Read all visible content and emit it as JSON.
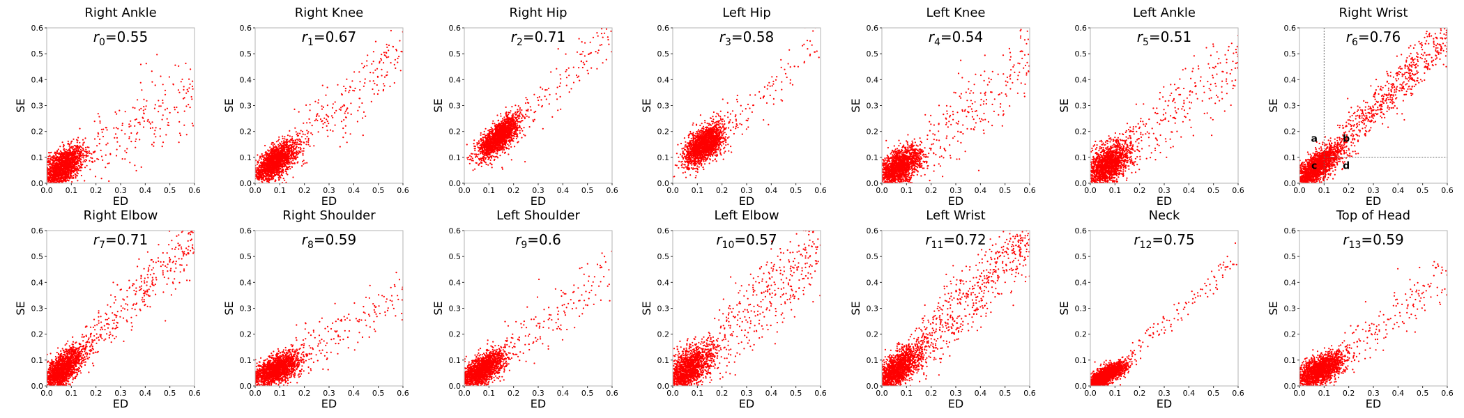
{
  "chart_data": [
    {
      "type": "scatter",
      "title": "Right Ankle",
      "r_sym": "r",
      "r_sub": "0",
      "r_val": "=0.55",
      "xlabel": "ED",
      "ylabel": "SE",
      "xlim": [
        0,
        0.6
      ],
      "ylim": [
        0,
        0.6
      ],
      "xticks": [
        "0.0",
        "0.1",
        "0.2",
        "0.3",
        "0.4",
        "0.5",
        "0.6"
      ],
      "yticks": [
        "0.0",
        "0.1",
        "0.2",
        "0.3",
        "0.4",
        "0.5",
        "0.6"
      ],
      "cluster": {
        "cx": 0.06,
        "cy": 0.06,
        "sx": 0.045,
        "sy": 0.04,
        "rho": 0.55
      },
      "spread": {
        "slope": 0.6,
        "noise": 0.08,
        "count": 200
      }
    },
    {
      "type": "scatter",
      "title": "Right Knee",
      "r_sym": "r",
      "r_sub": "1",
      "r_val": "=0.67",
      "xlabel": "ED",
      "ylabel": "SE",
      "xlim": [
        0,
        0.6
      ],
      "ylim": [
        0,
        0.6
      ],
      "xticks": [
        "0.0",
        "0.1",
        "0.2",
        "0.3",
        "0.4",
        "0.5",
        "0.6"
      ],
      "yticks": [
        "0.0",
        "0.1",
        "0.2",
        "0.3",
        "0.4",
        "0.5",
        "0.6"
      ],
      "cluster": {
        "cx": 0.08,
        "cy": 0.08,
        "sx": 0.045,
        "sy": 0.04,
        "rho": 0.67
      },
      "spread": {
        "slope": 0.85,
        "noise": 0.06,
        "count": 220
      }
    },
    {
      "type": "scatter",
      "title": "Right Hip",
      "r_sym": "r",
      "r_sub": "2",
      "r_val": "=0.71",
      "xlabel": "ED",
      "ylabel": "SE",
      "xlim": [
        0,
        0.6
      ],
      "ylim": [
        0,
        0.6
      ],
      "xticks": [
        "0.0",
        "0.1",
        "0.2",
        "0.3",
        "0.4",
        "0.5",
        "0.6"
      ],
      "yticks": [
        "0.0",
        "0.1",
        "0.2",
        "0.3",
        "0.4",
        "0.5",
        "0.6"
      ],
      "cluster": {
        "cx": 0.14,
        "cy": 0.18,
        "sx": 0.04,
        "sy": 0.04,
        "rho": 0.71
      },
      "spread": {
        "slope": 1.0,
        "noise": 0.05,
        "count": 140
      }
    },
    {
      "type": "scatter",
      "title": "Left Hip",
      "r_sym": "r",
      "r_sub": "3",
      "r_val": "=0.58",
      "xlabel": "ED",
      "ylabel": "SE",
      "xlim": [
        0,
        0.6
      ],
      "ylim": [
        0,
        0.6
      ],
      "xticks": [
        "0.0",
        "0.1",
        "0.2",
        "0.3",
        "0.4",
        "0.5",
        "0.6"
      ],
      "yticks": [
        "0.0",
        "0.1",
        "0.2",
        "0.3",
        "0.4",
        "0.5",
        "0.6"
      ],
      "cluster": {
        "cx": 0.13,
        "cy": 0.15,
        "sx": 0.04,
        "sy": 0.04,
        "rho": 0.58
      },
      "spread": {
        "slope": 0.9,
        "noise": 0.05,
        "count": 100
      }
    },
    {
      "type": "scatter",
      "title": "Left Knee",
      "r_sym": "r",
      "r_sub": "4",
      "r_val": "=0.54",
      "xlabel": "ED",
      "ylabel": "SE",
      "xlim": [
        0,
        0.6
      ],
      "ylim": [
        0,
        0.6
      ],
      "xticks": [
        "0.0",
        "0.1",
        "0.2",
        "0.3",
        "0.4",
        "0.5",
        "0.6"
      ],
      "yticks": [
        "0.0",
        "0.1",
        "0.2",
        "0.3",
        "0.4",
        "0.5",
        "0.6"
      ],
      "cluster": {
        "cx": 0.07,
        "cy": 0.06,
        "sx": 0.045,
        "sy": 0.04,
        "rho": 0.54
      },
      "spread": {
        "slope": 0.75,
        "noise": 0.08,
        "count": 230
      }
    },
    {
      "type": "scatter",
      "title": "Left Ankle",
      "r_sym": "r",
      "r_sub": "5",
      "r_val": "=0.51",
      "xlabel": "ED",
      "ylabel": "SE",
      "xlim": [
        0,
        0.6
      ],
      "ylim": [
        0,
        0.6
      ],
      "xticks": [
        "0.0",
        "0.1",
        "0.2",
        "0.3",
        "0.4",
        "0.5",
        "0.6"
      ],
      "yticks": [
        "0.0",
        "0.1",
        "0.2",
        "0.3",
        "0.4",
        "0.5",
        "0.6"
      ],
      "cluster": {
        "cx": 0.07,
        "cy": 0.07,
        "sx": 0.045,
        "sy": 0.045,
        "rho": 0.51
      },
      "spread": {
        "slope": 0.8,
        "noise": 0.08,
        "count": 230
      }
    },
    {
      "type": "scatter",
      "title": "Right Wrist",
      "r_sym": "r",
      "r_sub": "6",
      "r_val": "=0.76",
      "xlabel": "ED",
      "ylabel": "SE",
      "xlim": [
        0,
        0.6
      ],
      "ylim": [
        0,
        0.6
      ],
      "xticks": [
        "0.0",
        "0.1",
        "0.2",
        "0.3",
        "0.4",
        "0.5",
        "0.6"
      ],
      "yticks": [
        "0.0",
        "0.1",
        "0.2",
        "0.3",
        "0.4",
        "0.5",
        "0.6"
      ],
      "cluster": {
        "cx": 0.07,
        "cy": 0.06,
        "sx": 0.05,
        "sy": 0.045,
        "rho": 0.76
      },
      "spread": {
        "slope": 0.95,
        "noise": 0.045,
        "count": 600
      },
      "quadrant_lines": {
        "x": 0.1,
        "y": 0.1
      },
      "quadrant_labels": [
        {
          "text": "a",
          "x": 0.06,
          "y": 0.16
        },
        {
          "text": "b",
          "x": 0.19,
          "y": 0.16
        },
        {
          "text": "c",
          "x": 0.06,
          "y": 0.055
        },
        {
          "text": "d",
          "x": 0.19,
          "y": 0.055
        }
      ]
    },
    {
      "type": "scatter",
      "title": "Right Elbow",
      "r_sym": "r",
      "r_sub": "7",
      "r_val": "=0.71",
      "xlabel": "ED",
      "ylabel": "SE",
      "xlim": [
        0,
        0.6
      ],
      "ylim": [
        0,
        0.6
      ],
      "xticks": [
        "0.0",
        "0.1",
        "0.2",
        "0.3",
        "0.4",
        "0.5",
        "0.6"
      ],
      "yticks": [
        "0.0",
        "0.1",
        "0.2",
        "0.3",
        "0.4",
        "0.5",
        "0.6"
      ],
      "cluster": {
        "cx": 0.06,
        "cy": 0.06,
        "sx": 0.045,
        "sy": 0.045,
        "rho": 0.71
      },
      "spread": {
        "slope": 0.95,
        "noise": 0.05,
        "count": 320
      }
    },
    {
      "type": "scatter",
      "title": "Right Shoulder",
      "r_sym": "r",
      "r_sub": "8",
      "r_val": "=0.59",
      "xlabel": "ED",
      "ylabel": "SE",
      "xlim": [
        0,
        0.6
      ],
      "ylim": [
        0,
        0.6
      ],
      "xticks": [
        "0.0",
        "0.1",
        "0.2",
        "0.3",
        "0.4",
        "0.5",
        "0.6"
      ],
      "yticks": [
        "0.0",
        "0.1",
        "0.2",
        "0.3",
        "0.4",
        "0.5",
        "0.6"
      ],
      "cluster": {
        "cx": 0.08,
        "cy": 0.06,
        "sx": 0.05,
        "sy": 0.035,
        "rho": 0.59
      },
      "spread": {
        "slope": 0.6,
        "noise": 0.05,
        "count": 160
      }
    },
    {
      "type": "scatter",
      "title": "Left Shoulder",
      "r_sym": "r",
      "r_sub": "9",
      "r_val": "=0.6",
      "xlabel": "ED",
      "ylabel": "SE",
      "xlim": [
        0,
        0.6
      ],
      "ylim": [
        0,
        0.6
      ],
      "xticks": [
        "0.0",
        "0.1",
        "0.2",
        "0.3",
        "0.4",
        "0.5",
        "0.6"
      ],
      "yticks": [
        "0.0",
        "0.1",
        "0.2",
        "0.3",
        "0.4",
        "0.5",
        "0.6"
      ],
      "cluster": {
        "cx": 0.07,
        "cy": 0.06,
        "sx": 0.045,
        "sy": 0.035,
        "rho": 0.6
      },
      "spread": {
        "slope": 0.75,
        "noise": 0.05,
        "count": 150
      }
    },
    {
      "type": "scatter",
      "title": "Left Elbow",
      "r_sym": "r",
      "r_sub": "10",
      "r_val": "=0.57",
      "xlabel": "ED",
      "ylabel": "SE",
      "xlim": [
        0,
        0.6
      ],
      "ylim": [
        0,
        0.6
      ],
      "xticks": [
        "0.0",
        "0.1",
        "0.2",
        "0.3",
        "0.4",
        "0.5",
        "0.6"
      ],
      "yticks": [
        "0.0",
        "0.1",
        "0.2",
        "0.3",
        "0.4",
        "0.5",
        "0.6"
      ],
      "cluster": {
        "cx": 0.06,
        "cy": 0.06,
        "sx": 0.05,
        "sy": 0.05,
        "rho": 0.57
      },
      "spread": {
        "slope": 0.9,
        "noise": 0.08,
        "count": 380
      }
    },
    {
      "type": "scatter",
      "title": "Left Wrist",
      "r_sym": "r",
      "r_sub": "11",
      "r_val": "=0.72",
      "xlabel": "ED",
      "ylabel": "SE",
      "xlim": [
        0,
        0.6
      ],
      "ylim": [
        0,
        0.6
      ],
      "xticks": [
        "0.0",
        "0.1",
        "0.2",
        "0.3",
        "0.4",
        "0.5",
        "0.6"
      ],
      "yticks": [
        "0.0",
        "0.1",
        "0.2",
        "0.3",
        "0.4",
        "0.5",
        "0.6"
      ],
      "cluster": {
        "cx": 0.06,
        "cy": 0.06,
        "sx": 0.05,
        "sy": 0.05,
        "rho": 0.72
      },
      "spread": {
        "slope": 0.95,
        "noise": 0.07,
        "count": 560
      }
    },
    {
      "type": "scatter",
      "title": "Neck",
      "r_sym": "r",
      "r_sub": "12",
      "r_val": "=0.75",
      "xlabel": "ED",
      "ylabel": "SE",
      "xlim": [
        0,
        0.6
      ],
      "ylim": [
        0,
        0.6
      ],
      "xticks": [
        "0.0",
        "0.1",
        "0.2",
        "0.3",
        "0.4",
        "0.5",
        "0.6"
      ],
      "yticks": [
        "0.0",
        "0.1",
        "0.2",
        "0.3",
        "0.4",
        "0.5",
        "0.6"
      ],
      "cluster": {
        "cx": 0.06,
        "cy": 0.04,
        "sx": 0.04,
        "sy": 0.025,
        "rho": 0.75
      },
      "spread": {
        "slope": 0.8,
        "noise": 0.03,
        "count": 110
      }
    },
    {
      "type": "scatter",
      "title": "Top of Head",
      "r_sym": "r",
      "r_sub": "13",
      "r_val": "=0.59",
      "xlabel": "ED",
      "ylabel": "SE",
      "xlim": [
        0,
        0.6
      ],
      "ylim": [
        0,
        0.6
      ],
      "xticks": [
        "0.0",
        "0.1",
        "0.2",
        "0.3",
        "0.4",
        "0.5",
        "0.6"
      ],
      "yticks": [
        "0.0",
        "0.1",
        "0.2",
        "0.3",
        "0.4",
        "0.5",
        "0.6"
      ],
      "cluster": {
        "cx": 0.08,
        "cy": 0.06,
        "sx": 0.05,
        "sy": 0.035,
        "rho": 0.59
      },
      "spread": {
        "slope": 0.7,
        "noise": 0.05,
        "count": 170
      }
    }
  ],
  "colors": {
    "points": "#ff0000",
    "axes": "#b3b3b3",
    "text": "#000000",
    "guides": "#666666"
  },
  "cluster_points_per_panel": 1800
}
